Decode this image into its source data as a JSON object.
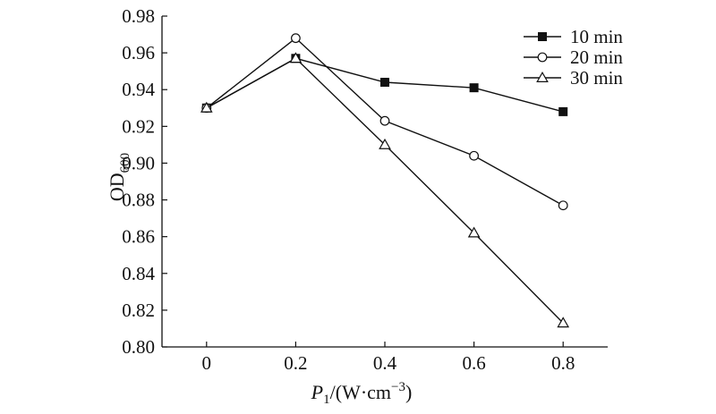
{
  "chart_data": {
    "type": "line",
    "x": [
      0,
      0.2,
      0.4,
      0.6,
      0.8
    ],
    "x_ticks": [
      "0",
      "0.2",
      "0.4",
      "0.6",
      "0.8"
    ],
    "y_ticks": [
      "0.80",
      "0.82",
      "0.84",
      "0.86",
      "0.88",
      "0.90",
      "0.92",
      "0.94",
      "0.96",
      "0.98"
    ],
    "ylim": [
      0.8,
      0.98
    ],
    "xlim": [
      -0.1,
      0.9
    ],
    "ylabel": {
      "main": "OD",
      "sub": "600"
    },
    "xlabel": {
      "var": "P",
      "sub": "1",
      "unit_open": "/(W·cm",
      "unit_sup": "−3",
      "unit_close": ")"
    },
    "grid": false,
    "legend_position": "top-right",
    "series": [
      {
        "name": "10 min",
        "marker": "filled-square",
        "values": [
          0.93,
          0.957,
          0.944,
          0.941,
          0.928
        ]
      },
      {
        "name": "20 min",
        "marker": "open-circle",
        "values": [
          0.93,
          0.968,
          0.923,
          0.904,
          0.877
        ]
      },
      {
        "name": "30 min",
        "marker": "open-triangle",
        "values": [
          0.93,
          0.957,
          0.91,
          0.862,
          0.813
        ]
      }
    ]
  }
}
